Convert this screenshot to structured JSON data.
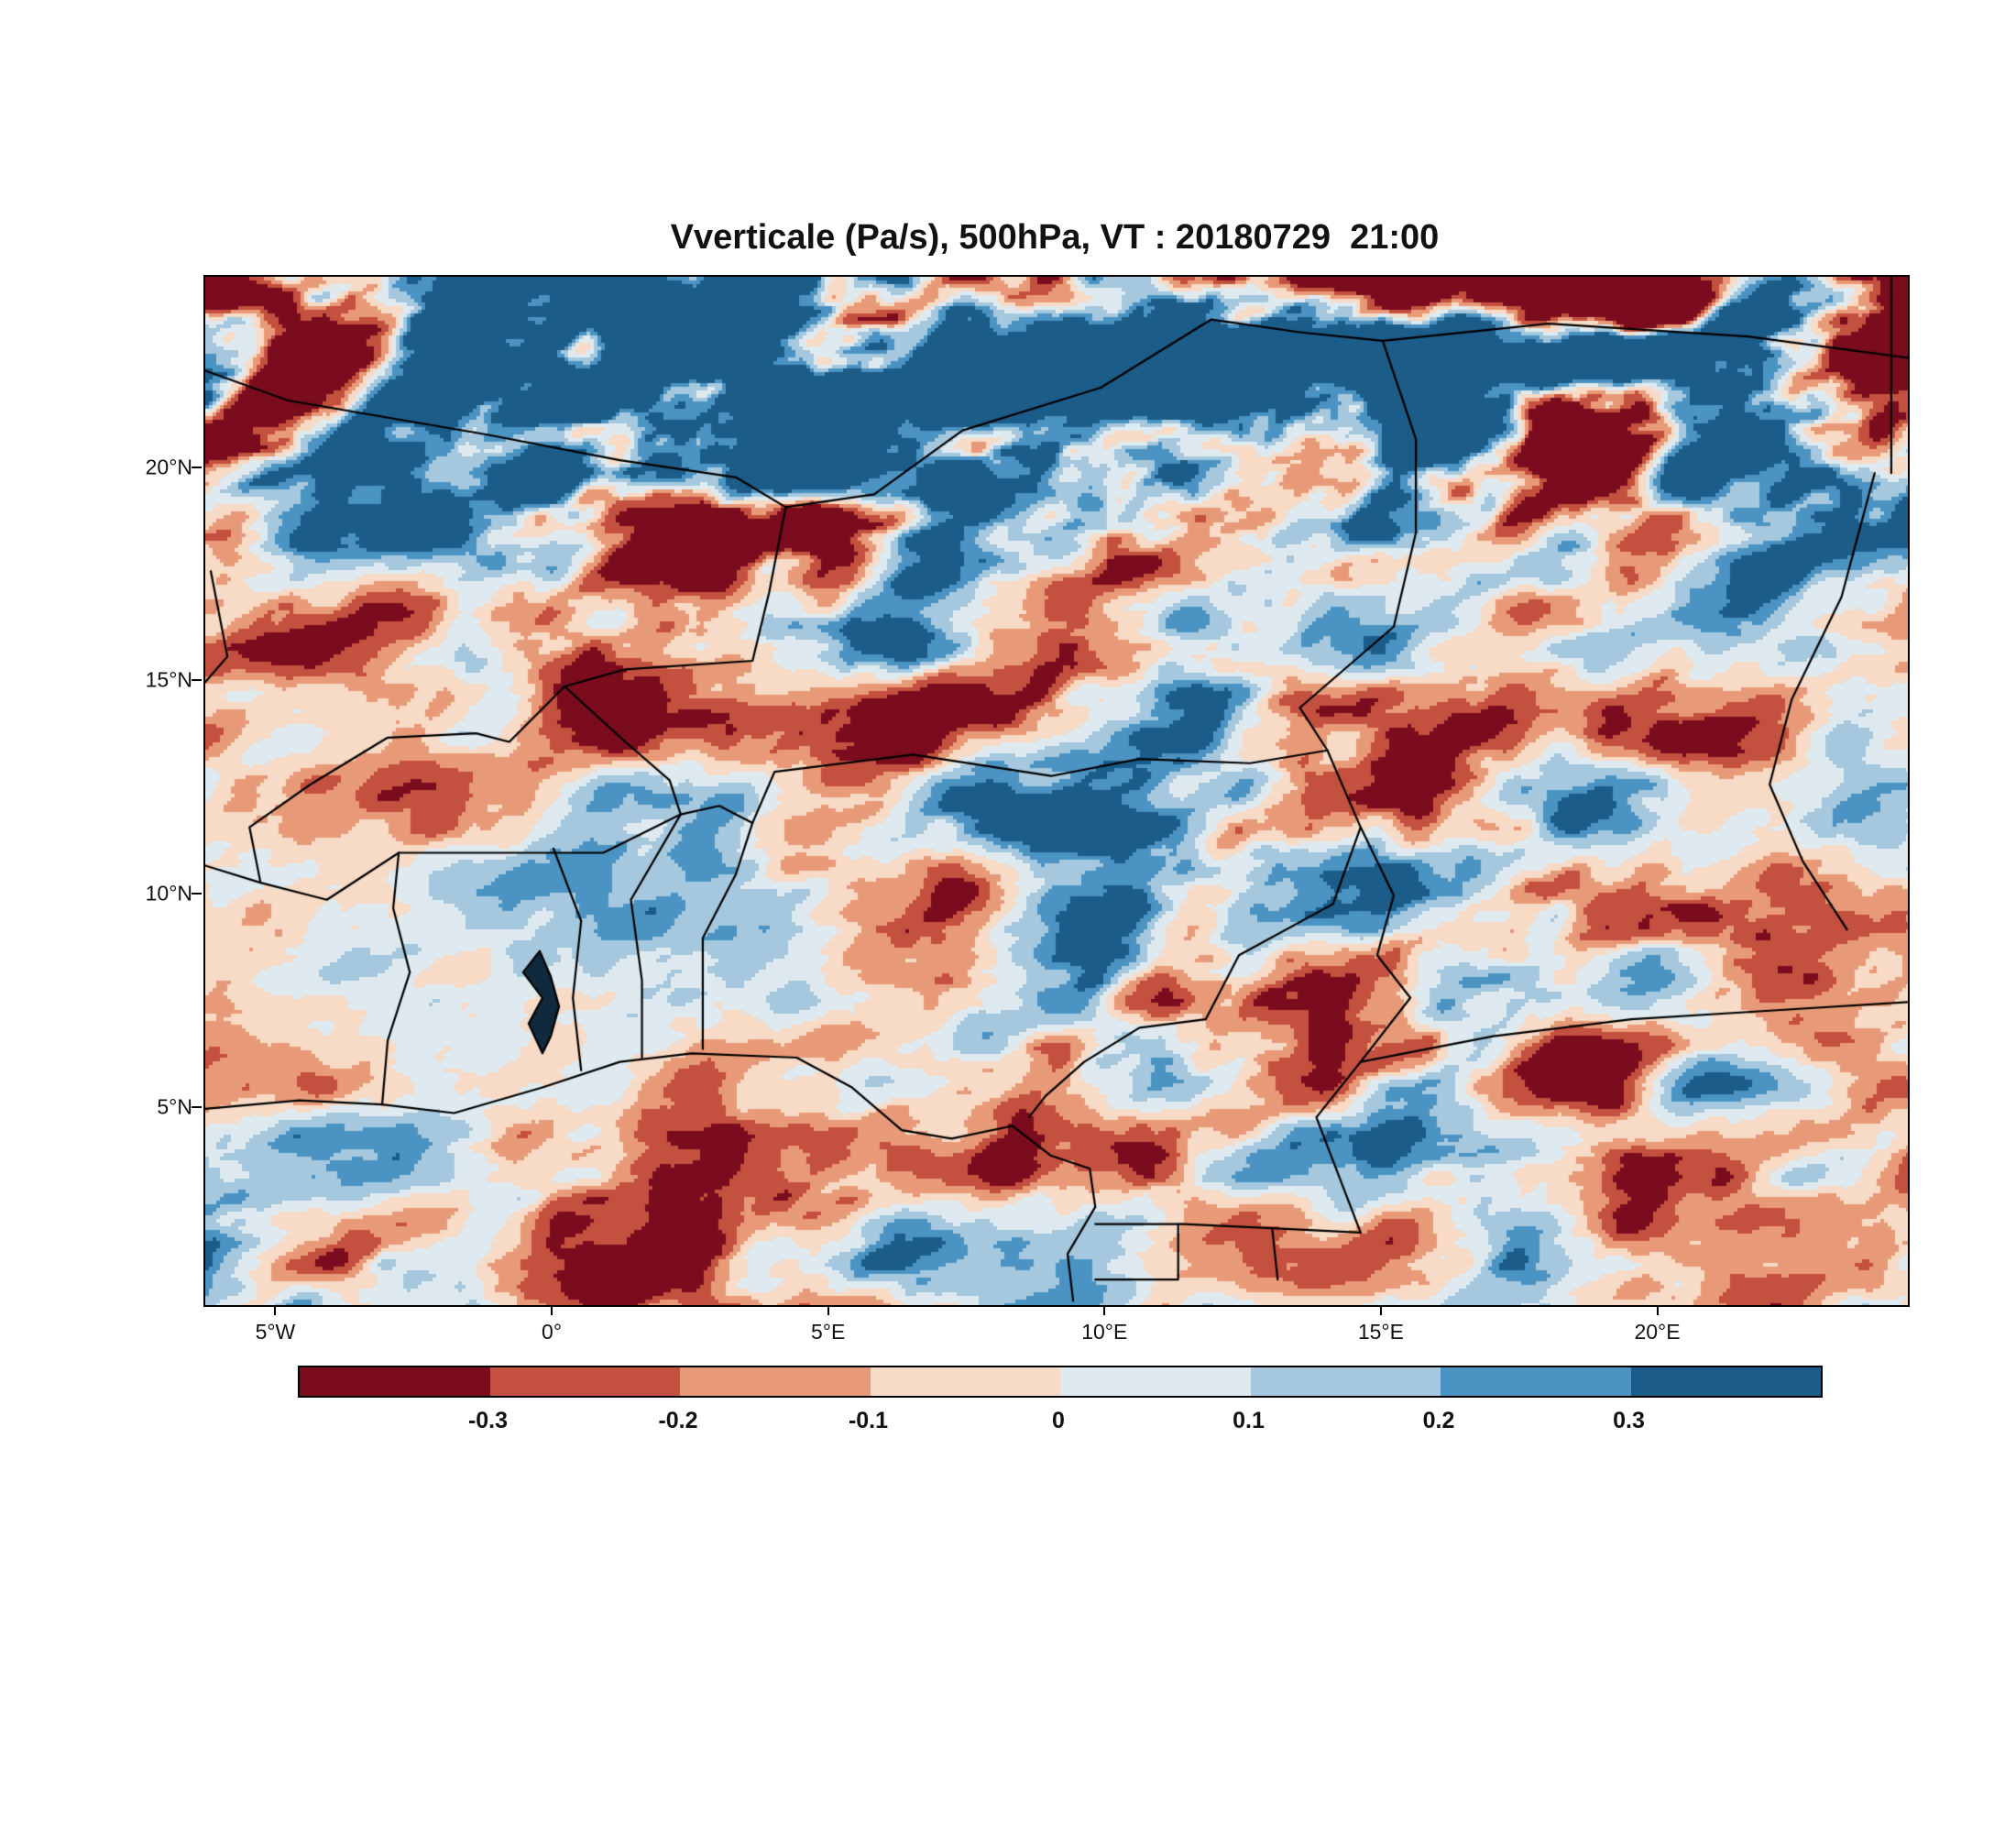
{
  "chart_data": {
    "type": "heatmap",
    "title": "Vverticale (Pa/s), 500hPa, VT : 20180729  21:00",
    "variable": "Vverticale",
    "units": "Pa/s",
    "pressure_level": "500hPa",
    "valid_time": "20180729  21:00",
    "lon_range": [
      -6.3,
      24.5
    ],
    "lat_range": [
      0.4,
      24.5
    ],
    "x_ticks": [
      {
        "label": "5°W",
        "lon": -5
      },
      {
        "label": "0°",
        "lon": 0
      },
      {
        "label": "5°E",
        "lon": 5
      },
      {
        "label": "10°E",
        "lon": 10
      },
      {
        "label": "15°E",
        "lon": 15
      },
      {
        "label": "20°E",
        "lon": 20
      }
    ],
    "y_ticks": [
      {
        "label": "5°N",
        "lat": 5
      },
      {
        "label": "10°N",
        "lat": 10
      },
      {
        "label": "15°N",
        "lat": 15
      },
      {
        "label": "20°N",
        "lat": 20
      }
    ],
    "colorbar": {
      "orientation": "horizontal",
      "boundary_labels": [
        "-0.3",
        "-0.2",
        "-0.1",
        "0",
        "0.1",
        "0.2",
        "0.3"
      ],
      "boundary_values": [
        -0.3,
        -0.2,
        -0.1,
        0,
        0.1,
        0.2,
        0.3
      ],
      "colors": [
        "#7a0c1e",
        "#c4503f",
        "#e89a78",
        "#f7dbc6",
        "#dfeaf0",
        "#a5c8de",
        "#4b93c3",
        "#1b5c88"
      ]
    },
    "borders": [
      [
        [
          -6.3,
          5.0
        ],
        [
          -4.6,
          5.2
        ],
        [
          -3.1,
          5.1
        ],
        [
          -1.8,
          4.9
        ],
        [
          -0.2,
          5.5
        ],
        [
          1.2,
          6.1
        ],
        [
          2.5,
          6.3
        ],
        [
          4.4,
          6.2
        ],
        [
          5.4,
          5.5
        ],
        [
          6.3,
          4.5
        ],
        [
          7.2,
          4.3
        ],
        [
          8.3,
          4.6
        ],
        [
          9.0,
          3.9
        ],
        [
          9.7,
          3.6
        ],
        [
          9.8,
          2.7
        ],
        [
          9.3,
          1.6
        ],
        [
          9.4,
          0.5
        ]
      ],
      [
        [
          -0.2,
          6.3
        ],
        [
          -0.45,
          7.0
        ],
        [
          -0.2,
          7.6
        ],
        [
          -0.55,
          8.2
        ],
        [
          -0.25,
          8.7
        ],
        [
          -0.05,
          8.1
        ],
        [
          0.1,
          7.4
        ],
        [
          -0.05,
          6.7
        ],
        [
          -0.2,
          6.3
        ]
      ],
      [
        [
          -3.1,
          5.1
        ],
        [
          -3.0,
          6.6
        ],
        [
          -2.6,
          8.2
        ],
        [
          -2.9,
          9.7
        ],
        [
          -2.8,
          11.0
        ]
      ],
      [
        [
          0.5,
          5.9
        ],
        [
          0.35,
          7.6
        ],
        [
          0.5,
          9.4
        ],
        [
          0.0,
          11.1
        ]
      ],
      [
        [
          1.6,
          6.2
        ],
        [
          1.6,
          8.0
        ],
        [
          1.4,
          9.9
        ],
        [
          2.3,
          11.9
        ]
      ],
      [
        [
          2.7,
          6.4
        ],
        [
          2.7,
          9.0
        ],
        [
          3.3,
          10.5
        ],
        [
          3.6,
          11.7
        ]
      ],
      [
        [
          -2.8,
          11.0
        ],
        [
          -1.0,
          11.0
        ],
        [
          0.9,
          11.0
        ],
        [
          2.3,
          11.9
        ]
      ],
      [
        [
          -2.8,
          11.0
        ],
        [
          -4.1,
          9.9
        ],
        [
          -5.3,
          10.3
        ],
        [
          -6.3,
          10.7
        ]
      ],
      [
        [
          -5.3,
          10.3
        ],
        [
          -5.5,
          11.6
        ],
        [
          -4.4,
          12.6
        ],
        [
          -3.0,
          13.7
        ],
        [
          -1.4,
          13.8
        ],
        [
          -0.8,
          13.6
        ],
        [
          0.2,
          14.9
        ]
      ],
      [
        [
          0.2,
          14.9
        ],
        [
          1.3,
          13.6
        ],
        [
          2.1,
          12.7
        ],
        [
          2.3,
          11.9
        ]
      ],
      [
        [
          2.3,
          11.9
        ],
        [
          3.0,
          12.1
        ],
        [
          3.6,
          11.7
        ]
      ],
      [
        [
          3.6,
          11.7
        ],
        [
          4.0,
          12.9
        ],
        [
          6.5,
          13.3
        ],
        [
          9.0,
          12.8
        ],
        [
          10.6,
          13.2
        ],
        [
          12.6,
          13.1
        ],
        [
          14.0,
          13.4
        ]
      ],
      [
        [
          0.2,
          14.9
        ],
        [
          1.3,
          15.3
        ],
        [
          3.6,
          15.5
        ],
        [
          3.9,
          17.1
        ],
        [
          4.2,
          19.1
        ]
      ],
      [
        [
          -6.3,
          22.3
        ],
        [
          -4.8,
          21.6
        ],
        [
          -1.2,
          20.8
        ],
        [
          1.2,
          20.2
        ],
        [
          3.3,
          19.8
        ],
        [
          4.2,
          19.1
        ]
      ],
      [
        [
          4.2,
          19.1
        ],
        [
          5.8,
          19.4
        ],
        [
          7.4,
          20.9
        ],
        [
          9.9,
          21.9
        ],
        [
          11.9,
          23.5
        ]
      ],
      [
        [
          11.9,
          23.5
        ],
        [
          13.5,
          23.2
        ],
        [
          15.0,
          23.0
        ],
        [
          18.0,
          23.4
        ],
        [
          21.6,
          23.1
        ],
        [
          24.5,
          22.6
        ]
      ],
      [
        [
          15.0,
          23.0
        ],
        [
          15.6,
          20.7
        ],
        [
          15.6,
          18.5
        ],
        [
          15.2,
          16.3
        ],
        [
          13.5,
          14.4
        ],
        [
          14.0,
          13.4
        ]
      ],
      [
        [
          14.0,
          13.4
        ],
        [
          14.6,
          11.6
        ],
        [
          14.1,
          9.8
        ],
        [
          12.4,
          8.6
        ],
        [
          11.8,
          7.1
        ],
        [
          10.6,
          6.9
        ],
        [
          9.6,
          6.1
        ],
        [
          8.9,
          5.3
        ],
        [
          8.6,
          4.8
        ]
      ],
      [
        [
          14.6,
          11.6
        ],
        [
          15.2,
          10.0
        ],
        [
          14.9,
          8.6
        ],
        [
          15.5,
          7.6
        ],
        [
          14.6,
          6.1
        ]
      ],
      [
        [
          14.6,
          6.1
        ],
        [
          17.0,
          6.7
        ],
        [
          19.5,
          7.1
        ],
        [
          22.0,
          7.3
        ],
        [
          24.5,
          7.5
        ]
      ],
      [
        [
          23.9,
          19.9
        ],
        [
          23.3,
          17.0
        ],
        [
          22.4,
          14.6
        ],
        [
          22.0,
          12.6
        ],
        [
          22.6,
          10.8
        ],
        [
          23.4,
          9.2
        ]
      ],
      [
        [
          24.2,
          24.5
        ],
        [
          24.2,
          19.9
        ]
      ],
      [
        [
          -6.2,
          17.6
        ],
        [
          -5.9,
          15.6
        ],
        [
          -6.3,
          15.0
        ]
      ],
      [
        [
          9.8,
          2.3
        ],
        [
          11.4,
          2.3
        ],
        [
          13.0,
          2.2
        ],
        [
          14.6,
          2.1
        ]
      ],
      [
        [
          9.8,
          1.0
        ],
        [
          11.3,
          1.0
        ],
        [
          11.3,
          2.3
        ]
      ],
      [
        [
          13.0,
          2.2
        ],
        [
          13.1,
          1.0
        ]
      ],
      [
        [
          14.6,
          6.1
        ],
        [
          13.8,
          4.8
        ],
        [
          14.6,
          2.1
        ]
      ]
    ]
  }
}
